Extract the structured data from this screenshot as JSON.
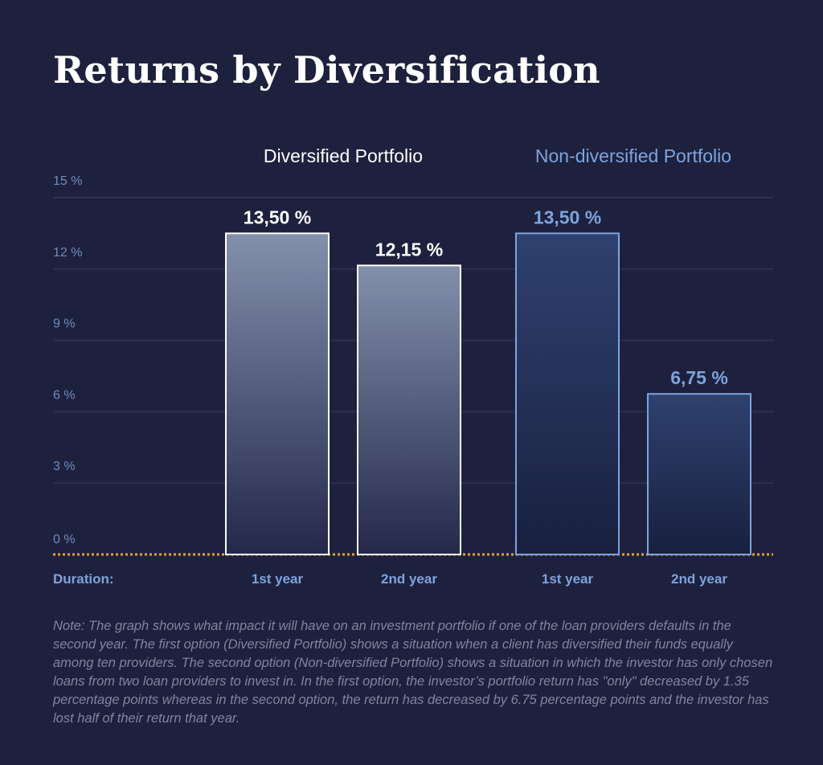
{
  "title": "Returns by Diversification",
  "note": "Note: The graph shows what impact it will have on an investment portfolio if one of the loan providers defaults in the second year. The first option (Diversified Portfolio) shows a situation when a client has diversified their funds equally among ten providers. The second option (Non-diversified Portfolio) shows a situation in which the investor has only chosen loans from two loan providers to invest in. In the first option, the investor’s portfolio return has \"only\" decreased by 1.35 percentage points whereas in the second option, the return has decreased by 6.75 percentage points and the investor has lost half of their return that year.",
  "colors": {
    "background": "#1e213e",
    "diversified_label": "#ffffff",
    "non_diversified_label": "#7ea3dc",
    "axis_line": "#e0a33a",
    "gridline": "#2c3150"
  },
  "chart_data": {
    "type": "bar",
    "title": "Returns by Diversification",
    "xlabel": "Duration:",
    "ylabel": "",
    "ylim": [
      0,
      15
    ],
    "yticks": [
      0,
      3,
      6,
      9,
      12,
      15
    ],
    "ytick_labels": [
      "0 %",
      "3 %",
      "6 %",
      "9 %",
      "12 %",
      "15 %"
    ],
    "grid": true,
    "categories": [
      "1st year",
      "2nd year"
    ],
    "series": [
      {
        "name": "Diversified Portfolio",
        "values": [
          13.5,
          12.15
        ],
        "value_labels": [
          "13,50 %",
          "12,15 %"
        ]
      },
      {
        "name": "Non-diversified Portfolio",
        "values": [
          13.5,
          6.75
        ],
        "value_labels": [
          "13,50 %",
          "6,75 %"
        ]
      }
    ]
  }
}
